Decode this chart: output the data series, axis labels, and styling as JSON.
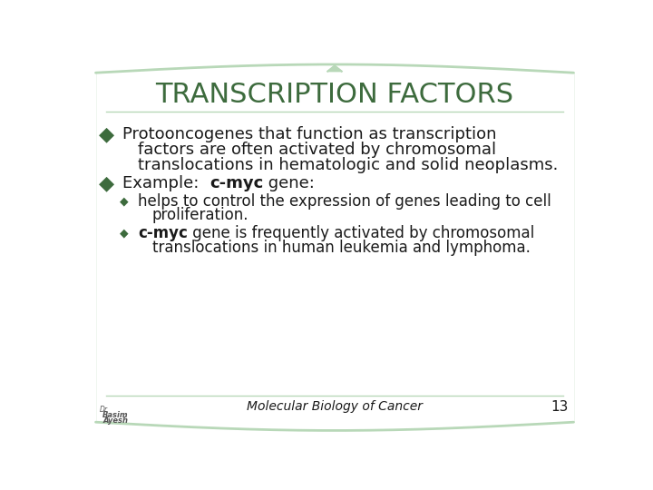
{
  "title": "TRANSCRIPTION FACTORS",
  "title_color": "#3d6b3d",
  "title_fontsize": 22,
  "background_color": "#ffffff",
  "border_color": "#b8d8b8",
  "bullet_color": "#3d6b3d",
  "text_color": "#1a1a1a",
  "footer_text": "Molecular Biology of Cancer",
  "footer_page": "13",
  "main_font_size": 13,
  "sub_font_size": 12,
  "footer_font_size": 10,
  "bullet1_line1": "Protooncogenes that function as transcription",
  "bullet1_line2": "factors are often activated by chromosomal",
  "bullet1_line3": "translocations in hematologic and solid neoplasms.",
  "bullet2_prefix": "Example:  ",
  "bullet2_bold": "c-myc",
  "bullet2_suffix": " gene:",
  "sub1_line1": "helps to control the expression of genes leading to cell",
  "sub1_line2": "proliferation.",
  "sub2_bold": "c-myc",
  "sub2_suffix": " gene is frequently activated by chromosomal",
  "sub2_line2": "translocations in human leukemia and lymphoma."
}
